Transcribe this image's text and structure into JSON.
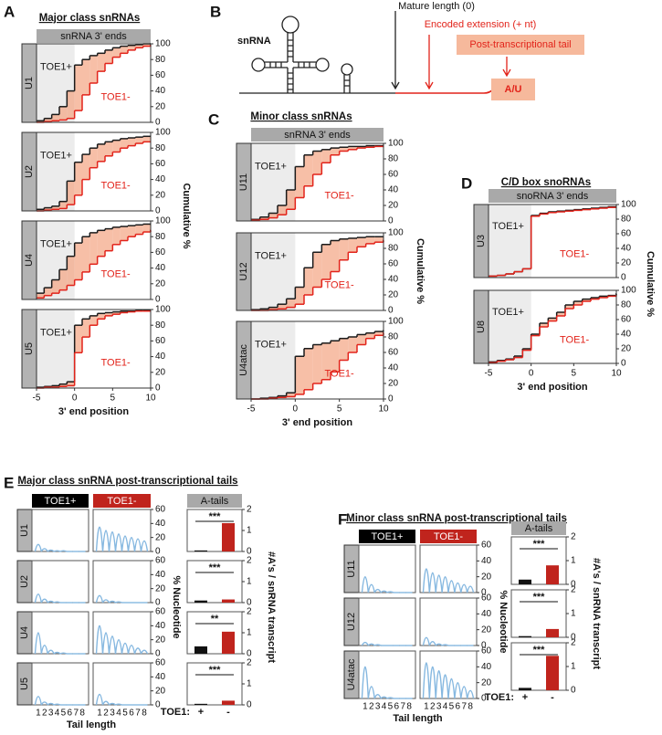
{
  "panel_labels": [
    "A",
    "B",
    "C",
    "D",
    "E",
    "F"
  ],
  "diagram": {
    "label": "snRNA",
    "mature": "Mature length (0)",
    "extension": "Encoded extension (+ nt)",
    "tail": "Post-transcriptional tail",
    "tail_end": "A/U"
  },
  "chart_data": [
    {
      "type": "step",
      "title": "Major class snRNAs",
      "header": "snRNA 3' ends",
      "xlabel": "3' end position",
      "ylabel": "Cumulative %",
      "xlim": [
        -5,
        10
      ],
      "xticks": [
        -5,
        0,
        5,
        10
      ],
      "ylim": [
        0,
        100
      ],
      "yticks": [
        0,
        20,
        40,
        60,
        80,
        100
      ],
      "shade_color": "#ececec",
      "fill_color": "#f4a98a",
      "x": [
        -5,
        -4,
        -3,
        -2,
        -1,
        0,
        1,
        2,
        3,
        4,
        5,
        6,
        7,
        8,
        9,
        10
      ],
      "panels": [
        {
          "name": "U1",
          "series": [
            {
              "name": "TOE1+",
              "color": "#1a1a1a",
              "values": [
                2,
                5,
                10,
                20,
                40,
                73,
                80,
                85,
                88,
                92,
                95,
                97,
                98,
                99,
                100,
                100
              ]
            },
            {
              "name": "TOE1-",
              "color": "#e2231a",
              "values": [
                0,
                1,
                2,
                3,
                5,
                15,
                35,
                50,
                65,
                75,
                83,
                88,
                92,
                95,
                97,
                98
              ]
            }
          ]
        },
        {
          "name": "U2",
          "series": [
            {
              "name": "TOE1+",
              "color": "#1a1a1a",
              "values": [
                2,
                4,
                6,
                12,
                38,
                62,
                72,
                80,
                85,
                88,
                90,
                92,
                93,
                94,
                95,
                95
              ]
            },
            {
              "name": "TOE1-",
              "color": "#e2231a",
              "values": [
                0,
                1,
                2,
                3,
                8,
                20,
                40,
                55,
                63,
                70,
                75,
                80,
                83,
                86,
                88,
                88
              ]
            }
          ]
        },
        {
          "name": "U4",
          "series": [
            {
              "name": "TOE1+",
              "color": "#1a1a1a",
              "values": [
                8,
                15,
                25,
                38,
                55,
                72,
                80,
                85,
                88,
                90,
                92,
                93,
                94,
                95,
                96,
                96
              ]
            },
            {
              "name": "TOE1-",
              "color": "#e2231a",
              "values": [
                2,
                5,
                8,
                12,
                18,
                25,
                35,
                45,
                55,
                62,
                70,
                75,
                80,
                83,
                86,
                88
              ]
            }
          ]
        },
        {
          "name": "U5",
          "series": [
            {
              "name": "TOE1+",
              "color": "#1a1a1a",
              "values": [
                1,
                2,
                3,
                5,
                8,
                80,
                88,
                92,
                95,
                96,
                97,
                98,
                98,
                99,
                99,
                99
              ]
            },
            {
              "name": "TOE1-",
              "color": "#e2231a",
              "values": [
                0,
                1,
                1,
                2,
                3,
                45,
                65,
                80,
                88,
                92,
                94,
                96,
                97,
                98,
                98,
                98
              ]
            }
          ]
        }
      ]
    },
    {
      "type": "step",
      "title": "Minor class snRNAs",
      "header": "snRNA 3' ends",
      "xlabel": "3' end position",
      "ylabel": "Cumulative %",
      "xlim": [
        -5,
        10
      ],
      "xticks": [
        -5,
        0,
        5,
        10
      ],
      "ylim": [
        0,
        100
      ],
      "yticks": [
        0,
        20,
        40,
        60,
        80,
        100
      ],
      "shade_color": "#ececec",
      "fill_color": "#f4a98a",
      "x": [
        -5,
        -4,
        -3,
        -2,
        -1,
        0,
        1,
        2,
        3,
        4,
        5,
        6,
        7,
        8,
        9,
        10
      ],
      "panels": [
        {
          "name": "U11",
          "series": [
            {
              "name": "TOE1+",
              "color": "#1a1a1a",
              "values": [
                2,
                5,
                10,
                20,
                40,
                70,
                85,
                90,
                92,
                94,
                95,
                96,
                96,
                97,
                97,
                97
              ]
            },
            {
              "name": "TOE1-",
              "color": "#e2231a",
              "values": [
                1,
                2,
                4,
                8,
                15,
                30,
                45,
                60,
                75,
                85,
                90,
                92,
                94,
                95,
                96,
                96
              ]
            }
          ]
        },
        {
          "name": "U12",
          "series": [
            {
              "name": "TOE1+",
              "color": "#1a1a1a",
              "values": [
                1,
                2,
                4,
                8,
                15,
                30,
                55,
                75,
                85,
                90,
                92,
                93,
                94,
                95,
                95,
                95
              ]
            },
            {
              "name": "TOE1-",
              "color": "#e2231a",
              "values": [
                0,
                0,
                1,
                2,
                4,
                8,
                20,
                30,
                40,
                50,
                65,
                75,
                82,
                86,
                88,
                90
              ]
            }
          ]
        },
        {
          "name": "U4atac",
          "series": [
            {
              "name": "TOE1+",
              "color": "#1a1a1a",
              "values": [
                0,
                1,
                2,
                4,
                8,
                55,
                65,
                70,
                72,
                75,
                78,
                80,
                83,
                85,
                87,
                88
              ]
            },
            {
              "name": "TOE1-",
              "color": "#e2231a",
              "values": [
                0,
                0,
                1,
                2,
                3,
                6,
                12,
                20,
                25,
                35,
                50,
                60,
                70,
                78,
                82,
                85
              ]
            }
          ]
        }
      ]
    },
    {
      "type": "step",
      "title": "C/D box snoRNAs",
      "header": "snoRNA 3' ends",
      "xlabel": "3' end position",
      "ylabel": "Cumulative %",
      "xlim": [
        -5,
        10
      ],
      "xticks": [
        -5,
        0,
        5,
        10
      ],
      "ylim": [
        0,
        100
      ],
      "yticks": [
        0,
        20,
        40,
        60,
        80,
        100
      ],
      "shade_color": "#ececec",
      "fill_color": "#f4a98a",
      "x": [
        -5,
        -4,
        -3,
        -2,
        -1,
        0,
        1,
        2,
        3,
        4,
        5,
        6,
        7,
        8,
        9,
        10
      ],
      "panels": [
        {
          "name": "U3",
          "series": [
            {
              "name": "TOE1+",
              "color": "#1a1a1a",
              "values": [
                2,
                3,
                5,
                8,
                12,
                85,
                88,
                90,
                91,
                92,
                93,
                94,
                95,
                96,
                97,
                97
              ]
            },
            {
              "name": "TOE1-",
              "color": "#e2231a",
              "values": [
                2,
                3,
                5,
                8,
                12,
                84,
                87,
                89,
                90,
                91,
                92,
                93,
                94,
                95,
                96,
                96
              ]
            }
          ]
        },
        {
          "name": "U8",
          "series": [
            {
              "name": "TOE1+",
              "color": "#1a1a1a",
              "values": [
                2,
                4,
                6,
                10,
                20,
                40,
                55,
                62,
                70,
                80,
                85,
                88,
                90,
                92,
                93,
                95
              ]
            },
            {
              "name": "TOE1-",
              "color": "#e2231a",
              "values": [
                1,
                3,
                5,
                8,
                18,
                38,
                50,
                58,
                65,
                75,
                80,
                85,
                88,
                90,
                92,
                93
              ]
            }
          ]
        }
      ]
    },
    {
      "type": "line",
      "title": "Major class snRNA post-transcriptional tails",
      "columns": [
        "TOE1+",
        "TOE1-"
      ],
      "column_colors": [
        "#000000",
        "#c0241d"
      ],
      "xlabel": "Tail length",
      "ylabel": "% Nucleotide",
      "x": [
        1,
        2,
        3,
        4,
        5,
        6,
        7,
        8
      ],
      "xlim": [
        0,
        9
      ],
      "xticks": [
        1,
        2,
        3,
        4,
        5,
        6,
        7,
        8
      ],
      "ylim": [
        0,
        60
      ],
      "yticks": [
        0,
        20,
        40,
        60
      ],
      "line_color": "#86b8e0",
      "panels": [
        {
          "name": "U1",
          "values": [
            [
              10,
              4,
              2,
              1,
              1,
              0,
              0,
              0
            ],
            [
              35,
              30,
              28,
              25,
              22,
              20,
              18,
              15
            ]
          ]
        },
        {
          "name": "U2",
          "values": [
            [
              12,
              5,
              2,
              1,
              0,
              0,
              0,
              0
            ],
            [
              10,
              4,
              2,
              1,
              0,
              0,
              0,
              0
            ]
          ]
        },
        {
          "name": "U4",
          "values": [
            [
              30,
              12,
              5,
              2,
              1,
              0,
              0,
              0
            ],
            [
              40,
              30,
              25,
              20,
              15,
              12,
              8,
              5
            ]
          ]
        },
        {
          "name": "U5",
          "values": [
            [
              12,
              4,
              2,
              1,
              0,
              0,
              0,
              0
            ],
            [
              15,
              5,
              2,
              1,
              0,
              0,
              0,
              0
            ]
          ]
        }
      ]
    },
    {
      "type": "bar",
      "header": "A-tails",
      "ylabel": "#A's / snRNA transcript",
      "ylim": [
        0,
        2
      ],
      "yticks": [
        0,
        1,
        2
      ],
      "group_label": "TOE1:",
      "categories": [
        "+",
        "-"
      ],
      "colors": [
        "#111111",
        "#c0241d"
      ],
      "panels": [
        {
          "values": [
            0.05,
            1.35
          ],
          "significance": "***"
        },
        {
          "values": [
            0.1,
            0.15
          ],
          "significance": "***"
        },
        {
          "values": [
            0.35,
            1.05
          ],
          "significance": "**"
        },
        {
          "values": [
            0.05,
            0.2
          ],
          "significance": "***"
        }
      ]
    },
    {
      "type": "line",
      "title": "Minor class snRNA post-transcriptional tails",
      "columns": [
        "TOE1+",
        "TOE1-"
      ],
      "column_colors": [
        "#000000",
        "#c0241d"
      ],
      "xlabel": "Tail length",
      "ylabel": "% Nucleotide",
      "x": [
        1,
        2,
        3,
        4,
        5,
        6,
        7,
        8
      ],
      "xlim": [
        0,
        9
      ],
      "xticks": [
        1,
        2,
        3,
        4,
        5,
        6,
        7,
        8
      ],
      "ylim": [
        0,
        60
      ],
      "yticks": [
        0,
        20,
        40,
        60
      ],
      "line_color": "#86b8e0",
      "panels": [
        {
          "name": "U11",
          "values": [
            [
              20,
              10,
              4,
              2,
              1,
              0,
              0,
              0
            ],
            [
              30,
              25,
              22,
              20,
              15,
              12,
              10,
              8
            ]
          ]
        },
        {
          "name": "U12",
          "values": [
            [
              4,
              2,
              1,
              0,
              0,
              0,
              0,
              0
            ],
            [
              10,
              5,
              2,
              1,
              0,
              0,
              0,
              0
            ]
          ]
        },
        {
          "name": "U4atac",
          "values": [
            [
              40,
              15,
              5,
              2,
              1,
              0,
              0,
              0
            ],
            [
              45,
              40,
              35,
              30,
              25,
              20,
              15,
              10
            ]
          ]
        }
      ]
    },
    {
      "type": "bar",
      "header": "A-tails",
      "ylabel": "#A's / snRNA transcript",
      "ylim": [
        0,
        2
      ],
      "yticks": [
        0,
        1,
        2
      ],
      "group_label": "TOE1:",
      "categories": [
        "+",
        "-"
      ],
      "colors": [
        "#111111",
        "#c0241d"
      ],
      "panels": [
        {
          "values": [
            0.2,
            0.8
          ],
          "significance": "***"
        },
        {
          "values": [
            0.05,
            0.35
          ],
          "significance": "***"
        },
        {
          "values": [
            0.1,
            1.45
          ],
          "significance": "***"
        }
      ]
    }
  ]
}
